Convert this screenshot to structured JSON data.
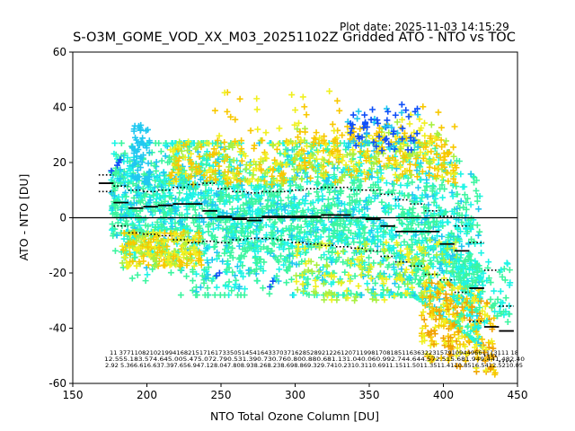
{
  "header": {
    "plot_date": "Plot date: 2025-11-03 14:15:29"
  },
  "chart_data": {
    "type": "scatter",
    "title": "S-O3M_GOME_VOD_XX_M03_20251102Z Gridded ATO - NTO vs TOC",
    "xlabel": "NTO Total Ozone Column [DU]",
    "ylabel": "ATO - NTO [DU]",
    "xlim": [
      150,
      450
    ],
    "ylim": [
      -60,
      60
    ],
    "xticks": [
      "150",
      "200",
      "250",
      "300",
      "350",
      "400",
      "450"
    ],
    "yticks": [
      "60",
      "40",
      "20",
      "0",
      "-20",
      "-40",
      "-60"
    ],
    "grid": false,
    "zero_line": 0,
    "colors": {
      "cyan": "#1ef5e6",
      "green": "#3cf5a0",
      "teal": "#20c8f0",
      "yellow": "#f0f020",
      "gold": "#f8c800",
      "orange": "#f0a000",
      "blue": "#1050f8",
      "lime": "#a8f040",
      "median": "#000000"
    },
    "scatter_clusters": [
      {
        "name": "bulk",
        "x_range": [
          175,
          425
        ],
        "y_center": [
          8,
          2,
          0,
          -2,
          -6,
          -10,
          -14
        ],
        "spread": 14,
        "color": "green"
      },
      {
        "name": "upper-yellow",
        "x_range": [
          215,
          415
        ],
        "y_range": [
          10,
          35
        ],
        "color": "gold"
      },
      {
        "name": "lower-yellow",
        "x_range": [
          185,
          240
        ],
        "y_range": [
          -18,
          -5
        ],
        "color": "yellow"
      },
      {
        "name": "tail-orange",
        "x_range": [
          390,
          435
        ],
        "y_range": [
          -55,
          -25
        ],
        "color": "orange"
      },
      {
        "name": "blue-high",
        "x_range": [
          330,
          385
        ],
        "y_range": [
          25,
          43
        ],
        "color": "blue"
      }
    ],
    "median_x": [
      172.5,
      182.5,
      192.5,
      202.5,
      212.5,
      222.5,
      232.5,
      242.5,
      252.5,
      262.5,
      272.5,
      282.5,
      292.5,
      302.5,
      312.5,
      322.5,
      332.5,
      342.5,
      352.5,
      362.5,
      372.5,
      382.5,
      392.5,
      402.5,
      412.5,
      422.5,
      432.5,
      442.5
    ],
    "median_y": [
      12.5,
      5.5,
      3.5,
      4.0,
      4.5,
      5.0,
      5.0,
      2.5,
      0.5,
      -0.5,
      -1.0,
      0.5,
      0.5,
      0.5,
      0.5,
      1.0,
      1.0,
      0.0,
      -0.5,
      -3.0,
      -5.0,
      -5.0,
      -5.0,
      -9.5,
      -12.0,
      -25.5,
      -39.5,
      -41.0
    ],
    "p_upper": [
      15.5,
      11.5,
      10.0,
      9.5,
      10.0,
      11.0,
      12.0,
      12.5,
      10.5,
      9.5,
      9.0,
      9.5,
      9.5,
      10.0,
      10.5,
      11.0,
      11.0,
      10.0,
      10.0,
      8.5,
      6.5,
      5.0,
      2.5,
      0.5,
      -3.0,
      -9.0,
      -19.0,
      -32.0
    ],
    "p_lower": [
      9.5,
      -3.0,
      -5.5,
      -6.0,
      -6.5,
      -8.0,
      -9.0,
      -8.5,
      -9.0,
      -8.0,
      -7.5,
      -7.5,
      -8.0,
      -9.0,
      -9.5,
      -10.0,
      -10.5,
      -11.0,
      -12.0,
      -14.0,
      -16.0,
      -17.5,
      -20.5,
      -22.5,
      -27.0,
      -37.5,
      -50.0,
      -52.0
    ],
    "annotation_rows": [
      "11   377110821021994168215171617335051454164337037162852892122612071199817081851163632231579109449661113111  18",
      "12.555.183.574.645.005.475.072.790.531.390.730.760.800.880.681.131.040.060.992.744.644.572.515.681.949.441.482.40",
      "2.92 5.366.616.637.397.656.947.128.047.808.938.268.238.698.869.329.7410.2310.3110.6911.1511.5011.3511.4110.8516.5412.5210.05"
    ]
  }
}
